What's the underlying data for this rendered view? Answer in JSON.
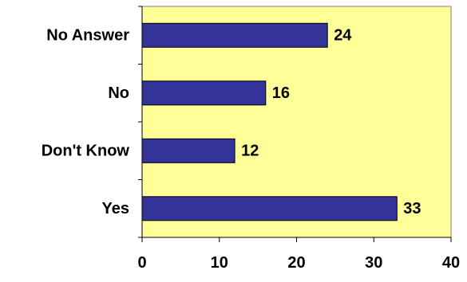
{
  "chart_data": {
    "type": "bar",
    "orientation": "horizontal",
    "categories": [
      "Yes",
      "Don't Know",
      "No",
      "No Answer"
    ],
    "values": [
      33,
      12,
      16,
      24
    ],
    "data_labels": [
      "33",
      "12",
      "16",
      "24"
    ],
    "xlim": [
      0,
      40
    ],
    "x_ticks": [
      "0",
      "10",
      "20",
      "30",
      "40"
    ],
    "grid": false,
    "legend": "none",
    "colors": {
      "plot_background": "#FFFF99",
      "bar_fill": "#333399",
      "bar_stroke": "#000000"
    }
  }
}
